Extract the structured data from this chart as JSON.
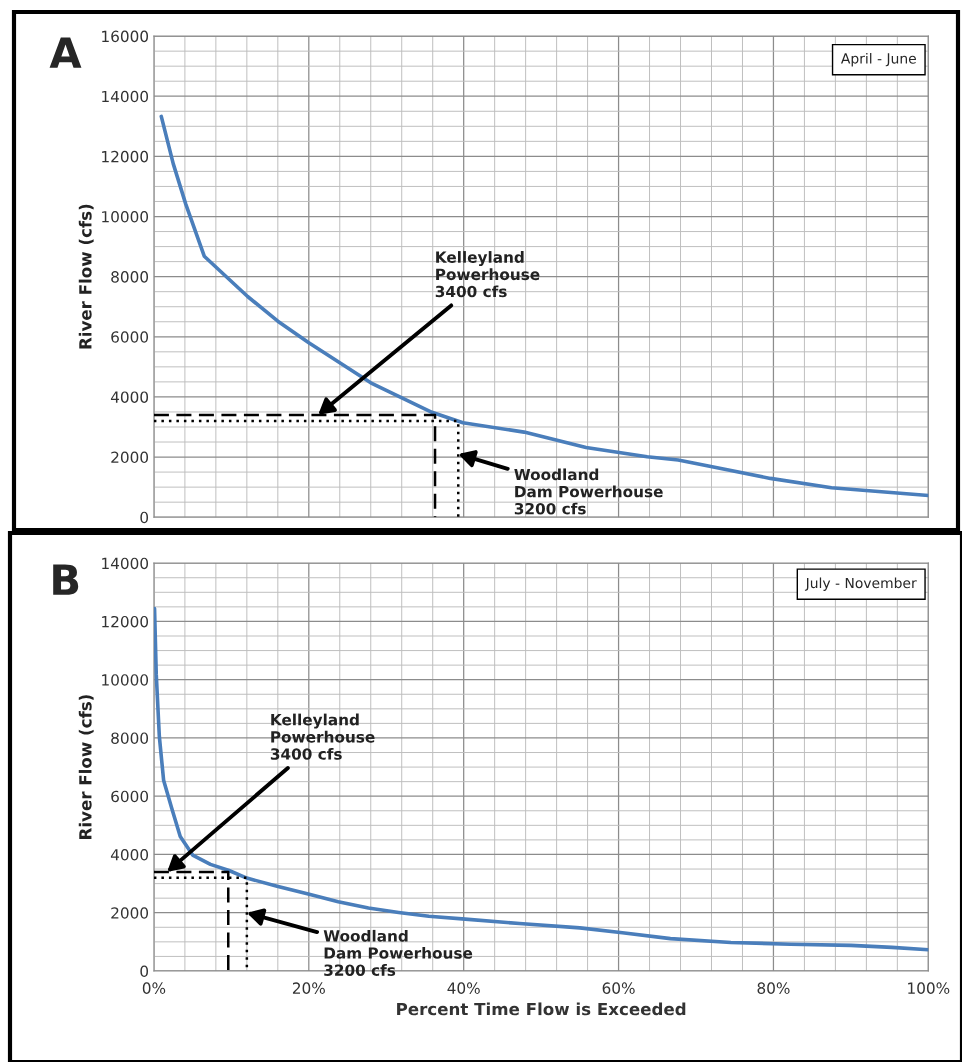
{
  "chart_data": [
    {
      "type": "line",
      "ylabel": "River Flow (cfs)",
      "xlim": [
        0,
        100
      ],
      "ylim": [
        0,
        16000
      ],
      "xticks": [
        {
          "value": 0,
          "label": null
        },
        {
          "value": 20,
          "label": null
        },
        {
          "value": 40,
          "label": null
        },
        {
          "value": 60,
          "label": null
        },
        {
          "value": 80,
          "label": null
        },
        {
          "value": 100,
          "label": null
        }
      ],
      "yticks": [
        0,
        2000,
        4000,
        6000,
        8000,
        10000,
        12000,
        14000,
        16000
      ],
      "tick_labels": "y",
      "grid": true,
      "legend": false,
      "series": [
        {
          "color": "#4a7ebb",
          "line_style": "solid",
          "x": [
            0.95,
            2.5,
            4.1,
            6.5,
            12.1,
            16.0,
            20.0,
            28.0,
            35.9,
            39.9,
            47.8,
            55.8,
            63.7,
            67.7,
            71.6,
            79.6,
            87.5,
            100
          ],
          "values": [
            13330,
            11750,
            10420,
            8680,
            7340,
            6520,
            5800,
            4470,
            3490,
            3140,
            2830,
            2320,
            2010,
            1900,
            1700,
            1290,
            980,
            720
          ]
        },
        {
          "color": "#000000",
          "line_style": "dashed",
          "x": [
            0,
            36.3,
            36.3
          ],
          "values": [
            3400,
            3400,
            0
          ]
        },
        {
          "color": "#000000",
          "line_style": "dotted",
          "x": [
            0,
            39.3,
            39.3
          ],
          "values": [
            3200,
            3200,
            0
          ]
        }
      ],
      "annotations": [
        "A",
        "April - June",
        {
          "text": "Kelleyland\nPowerhouse\n3400 cfs",
          "x": 21.2,
          "y": 3400
        },
        {
          "text": "Woodland\nDam Powerhouse\n3200 cfs",
          "x": 39.3,
          "y": 2100
        }
      ]
    },
    {
      "type": "line",
      "xlabel": "Percent Time Flow is Exceeded",
      "ylabel": "River Flow (cfs)",
      "xlim": [
        0,
        100
      ],
      "ylim": [
        0,
        14000
      ],
      "xticks": [
        {
          "value": 0,
          "label": "0%"
        },
        {
          "value": 20,
          "label": "20%"
        },
        {
          "value": 40,
          "label": "40%"
        },
        {
          "value": 60,
          "label": "60%"
        },
        {
          "value": 80,
          "label": "80%"
        },
        {
          "value": 100,
          "label": "100%"
        }
      ],
      "yticks": [
        0,
        2000,
        4000,
        6000,
        8000,
        10000,
        12000,
        14000
      ],
      "grid": true,
      "legend": false,
      "series": [
        {
          "color": "#4a7ebb",
          "line_style": "solid",
          "x": [
            0.08,
            0.3,
            0.7,
            1.25,
            2.3,
            3.4,
            5.0,
            7.3,
            9.7,
            12.0,
            15.9,
            19.8,
            23.8,
            27.7,
            31.6,
            35.5,
            40.2,
            47.2,
            55.0,
            60.5,
            66.7,
            74.5,
            82.2,
            90.0,
            95.3,
            100
          ],
          "values": [
            12440,
            10190,
            8050,
            6550,
            5590,
            4620,
            3980,
            3660,
            3450,
            3190,
            2910,
            2650,
            2380,
            2160,
            2010,
            1880,
            1780,
            1630,
            1480,
            1310,
            1110,
            980,
            920,
            880,
            810,
            730
          ]
        },
        {
          "color": "#000000",
          "line_style": "dashed",
          "x": [
            0,
            9.6,
            9.6
          ],
          "values": [
            3400,
            3400,
            0
          ]
        },
        {
          "color": "#000000",
          "line_style": "dotted",
          "x": [
            0,
            12.0,
            12.0
          ],
          "values": [
            3200,
            3200,
            0
          ]
        }
      ],
      "annotations": [
        "B",
        "July - November",
        {
          "text": "Kelleyland\nPowerhouse\n3400 cfs",
          "x": 1.7,
          "y": 3400
        },
        {
          "text": "Woodland\nDam Powerhouse\n3200 cfs",
          "x": 12.0,
          "y": 2000
        }
      ]
    }
  ]
}
